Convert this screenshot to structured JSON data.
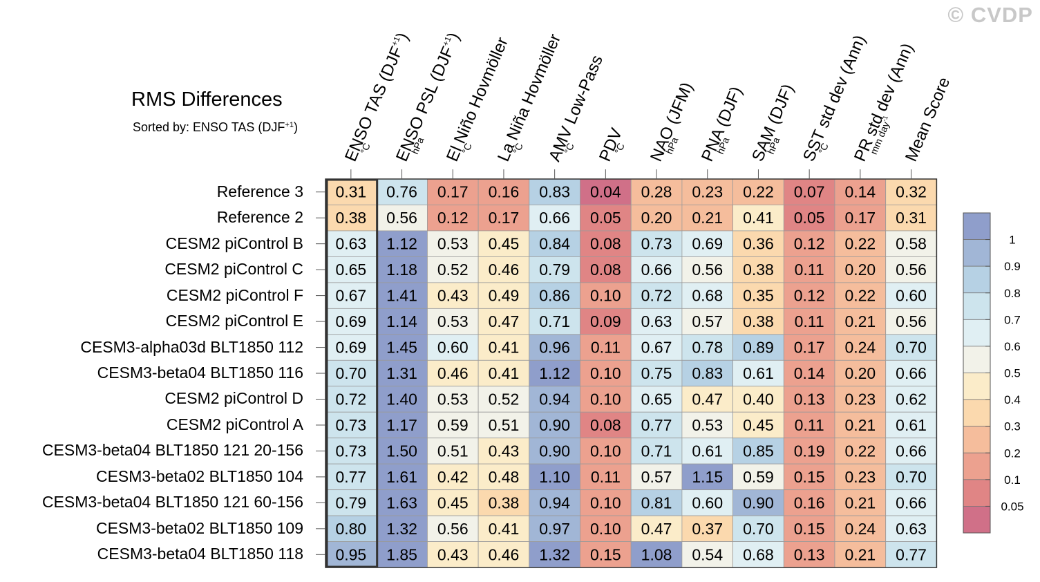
{
  "watermark": "© CVDP",
  "title": "RMS Differences",
  "subtitle": {
    "text": "Sorted by: ENSO TAS (DJF",
    "sup": "+1",
    "close": ")"
  },
  "chart_data": {
    "type": "heatmap",
    "title": "RMS Differences",
    "columns": [
      {
        "label": "ENSO TAS (DJF",
        "sup": "+1",
        "close": ")",
        "unit": "°C",
        "unit_sup": ""
      },
      {
        "label": "ENSO PSL (DJF",
        "sup": "+1",
        "close": ")",
        "unit": "hPa",
        "unit_sup": ""
      },
      {
        "label": "El Niño Hovmöller",
        "sup": "",
        "close": "",
        "unit": "°C",
        "unit_sup": ""
      },
      {
        "label": "La Niña Hovmöller",
        "sup": "",
        "close": "",
        "unit": "°C",
        "unit_sup": ""
      },
      {
        "label": "AMV Low-Pass",
        "sup": "",
        "close": "",
        "unit": "°C",
        "unit_sup": ""
      },
      {
        "label": "PDV",
        "sup": "",
        "close": "",
        "unit": "°C",
        "unit_sup": ""
      },
      {
        "label": "NAO (JFM)",
        "sup": "",
        "close": "",
        "unit": "hPa",
        "unit_sup": ""
      },
      {
        "label": "PNA (DJF)",
        "sup": "",
        "close": "",
        "unit": "hPa",
        "unit_sup": ""
      },
      {
        "label": "SAM (DJF)",
        "sup": "",
        "close": "",
        "unit": "hPa",
        "unit_sup": ""
      },
      {
        "label": "SST std dev (Ann)",
        "sup": "",
        "close": "",
        "unit": "°C",
        "unit_sup": ""
      },
      {
        "label": "PR std dev (Ann)",
        "sup": "",
        "close": "",
        "unit": "mm day",
        "unit_sup": "-1"
      },
      {
        "label": "Mean Score",
        "sup": "",
        "close": "",
        "unit": "",
        "unit_sup": ""
      }
    ],
    "rows": [
      "Reference 3",
      "Reference 2",
      "CESM2 piControl B",
      "CESM2 piControl C",
      "CESM2 piControl F",
      "CESM2 piControl E",
      "CESM3-alpha03d BLT1850 112",
      "CESM3-beta04 BLT1850 116",
      "CESM2 piControl D",
      "CESM2 piControl A",
      "CESM3-beta04 BLT1850 121 20-156",
      "CESM3-beta02 BLT1850 104",
      "CESM3-beta04 BLT1850 121 60-156",
      "CESM3-beta02 BLT1850 109",
      "CESM3-beta04 BLT1850 118"
    ],
    "values": [
      [
        "0.31",
        "0.76",
        "0.17",
        "0.16",
        "0.83",
        "0.04",
        "0.28",
        "0.23",
        "0.22",
        "0.07",
        "0.14",
        "0.32"
      ],
      [
        "0.38",
        "0.56",
        "0.12",
        "0.17",
        "0.66",
        "0.05",
        "0.20",
        "0.21",
        "0.41",
        "0.05",
        "0.17",
        "0.31"
      ],
      [
        "0.63",
        "1.12",
        "0.53",
        "0.45",
        "0.84",
        "0.08",
        "0.73",
        "0.69",
        "0.36",
        "0.12",
        "0.22",
        "0.58"
      ],
      [
        "0.65",
        "1.18",
        "0.52",
        "0.46",
        "0.79",
        "0.08",
        "0.66",
        "0.56",
        "0.38",
        "0.11",
        "0.20",
        "0.56"
      ],
      [
        "0.67",
        "1.41",
        "0.43",
        "0.49",
        "0.86",
        "0.10",
        "0.72",
        "0.68",
        "0.35",
        "0.12",
        "0.22",
        "0.60"
      ],
      [
        "0.69",
        "1.14",
        "0.53",
        "0.47",
        "0.71",
        "0.09",
        "0.63",
        "0.57",
        "0.38",
        "0.11",
        "0.21",
        "0.56"
      ],
      [
        "0.69",
        "1.45",
        "0.60",
        "0.41",
        "0.96",
        "0.11",
        "0.67",
        "0.78",
        "0.89",
        "0.17",
        "0.24",
        "0.70"
      ],
      [
        "0.70",
        "1.31",
        "0.46",
        "0.41",
        "1.12",
        "0.10",
        "0.75",
        "0.83",
        "0.61",
        "0.14",
        "0.20",
        "0.66"
      ],
      [
        "0.72",
        "1.40",
        "0.53",
        "0.52",
        "0.94",
        "0.10",
        "0.65",
        "0.47",
        "0.40",
        "0.13",
        "0.23",
        "0.62"
      ],
      [
        "0.73",
        "1.17",
        "0.59",
        "0.51",
        "0.90",
        "0.08",
        "0.77",
        "0.53",
        "0.45",
        "0.11",
        "0.21",
        "0.61"
      ],
      [
        "0.73",
        "1.50",
        "0.51",
        "0.43",
        "0.90",
        "0.10",
        "0.71",
        "0.61",
        "0.85",
        "0.19",
        "0.22",
        "0.66"
      ],
      [
        "0.77",
        "1.61",
        "0.42",
        "0.48",
        "1.10",
        "0.11",
        "0.57",
        "1.15",
        "0.59",
        "0.15",
        "0.23",
        "0.70"
      ],
      [
        "0.79",
        "1.63",
        "0.45",
        "0.38",
        "0.94",
        "0.10",
        "0.81",
        "0.60",
        "0.90",
        "0.16",
        "0.21",
        "0.66"
      ],
      [
        "0.80",
        "1.32",
        "0.56",
        "0.41",
        "0.97",
        "0.10",
        "0.47",
        "0.37",
        "0.70",
        "0.15",
        "0.24",
        "0.63"
      ],
      [
        "0.95",
        "1.85",
        "0.43",
        "0.46",
        "1.32",
        "0.15",
        "1.08",
        "0.54",
        "0.68",
        "0.13",
        "0.21",
        "0.77"
      ]
    ],
    "highlighted_column": "ENSO TAS (DJF+1)",
    "colorbar": {
      "labels": [
        "1",
        "0.9",
        "0.8",
        "0.7",
        "0.6",
        "0.5",
        "0.4",
        "0.3",
        "0.2",
        "0.1",
        "0.05"
      ],
      "bins": [
        {
          "min": 1.0,
          "max": null,
          "color": "#8f9ecb"
        },
        {
          "min": 0.9,
          "max": 1.0,
          "color": "#a1b6d6"
        },
        {
          "min": 0.8,
          "max": 0.9,
          "color": "#b6d1e4"
        },
        {
          "min": 0.7,
          "max": 0.8,
          "color": "#cde4ed"
        },
        {
          "min": 0.6,
          "max": 0.7,
          "color": "#e0eff3"
        },
        {
          "min": 0.5,
          "max": 0.6,
          "color": "#f2f2e9"
        },
        {
          "min": 0.4,
          "max": 0.5,
          "color": "#fbecc9"
        },
        {
          "min": 0.3,
          "max": 0.4,
          "color": "#fbd9ae"
        },
        {
          "min": 0.2,
          "max": 0.3,
          "color": "#f5bd9c"
        },
        {
          "min": 0.1,
          "max": 0.2,
          "color": "#eca18f"
        },
        {
          "min": 0.05,
          "max": 0.1,
          "color": "#e08585"
        },
        {
          "min": null,
          "max": 0.05,
          "color": "#d07088"
        }
      ]
    }
  }
}
